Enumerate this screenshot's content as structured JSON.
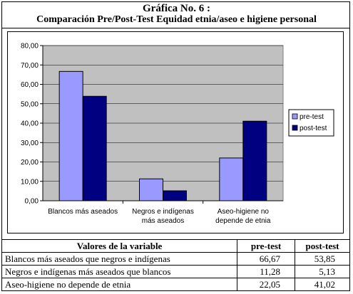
{
  "header": {
    "title_line1": "Gráfica No. 6 :",
    "title_line2": "Comparación Pre/Post-Test Equidad etnia/aseo e higiene personal"
  },
  "chart_data": {
    "type": "bar",
    "categories": [
      [
        "Blancos más aseados"
      ],
      [
        "Negros e indígenas",
        "más aseados"
      ],
      [
        "Aseo-higiene no",
        "depende de etnia"
      ]
    ],
    "series": [
      {
        "name": "pre-test",
        "values": [
          66.67,
          11.28,
          22.05
        ],
        "color": "#9999FF"
      },
      {
        "name": "post-test",
        "values": [
          53.85,
          5.13,
          41.02
        ],
        "color": "#000080"
      }
    ],
    "y_ticks": [
      "0,00",
      "10,00",
      "20,00",
      "30,00",
      "40,00",
      "50,00",
      "60,00",
      "70,00",
      "80,00"
    ],
    "ylim": [
      0,
      80
    ],
    "plot_background": "#C0C0C0",
    "legend_position": "right"
  },
  "table": {
    "headers": [
      "Valores de la variable",
      "pre-test",
      "post-test"
    ],
    "rows": [
      [
        "Blancos más aseados que negros e indígenas",
        "66,67",
        "53,85"
      ],
      [
        "Negros e indígenas más aseados que blancos",
        "11,28",
        "5,13"
      ],
      [
        "Aseo-higiene no depende de etnia",
        "22,05",
        "41,02"
      ]
    ]
  }
}
